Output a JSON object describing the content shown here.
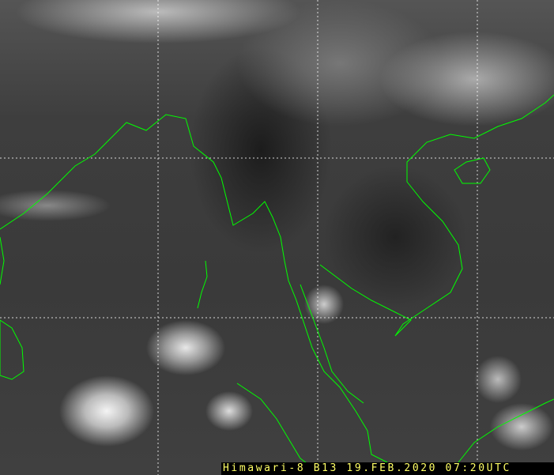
{
  "caption": "Himawari-8 B13 19.FEB.2020 07:20UTC",
  "colors": {
    "coastline": "#00ff00",
    "grid": "#ffffff",
    "caption_text": "#ffff66",
    "caption_bg": "#000000"
  },
  "image_type": "infrared satellite imagery"
}
